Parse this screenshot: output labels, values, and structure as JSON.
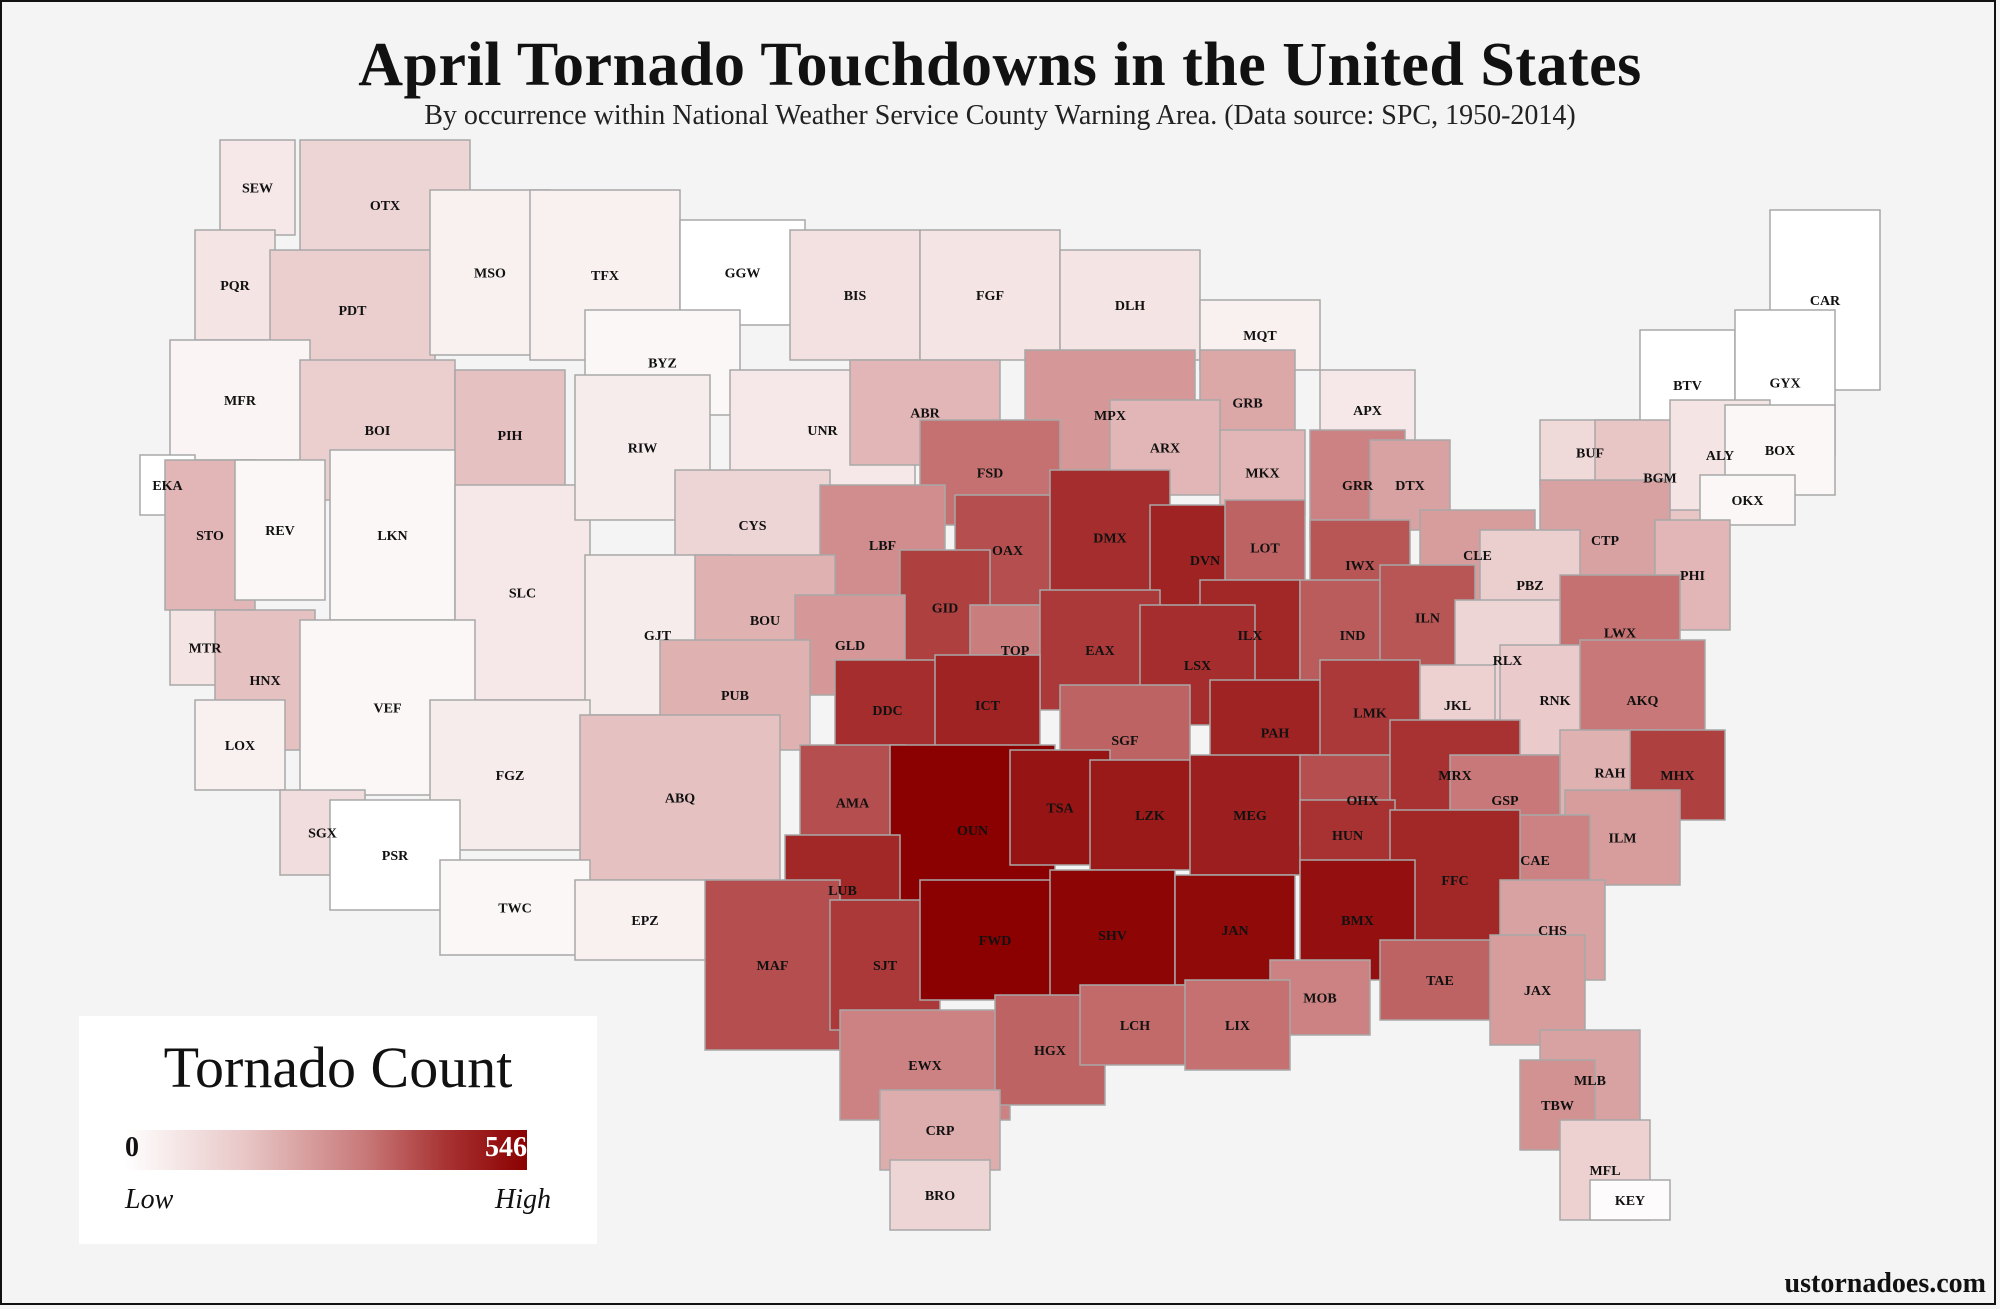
{
  "title": "April Tornado Touchdowns in the United States",
  "subtitle": "By occurrence within National Weather Service County Warning Area. (Data source: SPC, 1950-2014)",
  "legend": {
    "title": "Tornado Count",
    "min": "0",
    "max": "546",
    "low_label": "Low",
    "high_label": "High",
    "color_low": "#ffffff",
    "color_high": "#8b0000"
  },
  "credit": "ustornadoes.com",
  "map_data": {
    "type": "choropleth",
    "shading_scale": "0 (white) to 546 (dark red)",
    "regions": [
      {
        "code": "SEW",
        "level": 0.12
      },
      {
        "code": "OTX",
        "level": 0.22
      },
      {
        "code": "PQR",
        "level": 0.14
      },
      {
        "code": "PDT",
        "level": 0.26
      },
      {
        "code": "MSO",
        "level": 0.08
      },
      {
        "code": "TFX",
        "level": 0.08
      },
      {
        "code": "GGW",
        "level": 0.0
      },
      {
        "code": "BIS",
        "level": 0.16
      },
      {
        "code": "FGF",
        "level": 0.14
      },
      {
        "code": "DLH",
        "level": 0.14
      },
      {
        "code": "MQT",
        "level": 0.08
      },
      {
        "code": "CAR",
        "level": 0.0
      },
      {
        "code": "MFR",
        "level": 0.06
      },
      {
        "code": "BOI",
        "level": 0.26
      },
      {
        "code": "PIH",
        "level": 0.32
      },
      {
        "code": "BYZ",
        "level": 0.04
      },
      {
        "code": "UNR",
        "level": 0.12
      },
      {
        "code": "ABR",
        "level": 0.36
      },
      {
        "code": "MPX",
        "level": 0.48
      },
      {
        "code": "GRB",
        "level": 0.42
      },
      {
        "code": "APX",
        "level": 0.12
      },
      {
        "code": "BTV",
        "level": 0.0
      },
      {
        "code": "GYX",
        "level": 0.0
      },
      {
        "code": "EKA",
        "level": 0.0
      },
      {
        "code": "STO",
        "level": 0.36
      },
      {
        "code": "REV",
        "level": 0.04
      },
      {
        "code": "LKN",
        "level": 0.04
      },
      {
        "code": "SLC",
        "level": 0.12
      },
      {
        "code": "RIW",
        "level": 0.1
      },
      {
        "code": "CYS",
        "level": 0.22
      },
      {
        "code": "FSD",
        "level": 0.62
      },
      {
        "code": "ARX",
        "level": 0.36
      },
      {
        "code": "MKX",
        "level": 0.36
      },
      {
        "code": "GRR",
        "level": 0.56
      },
      {
        "code": "DTX",
        "level": 0.44
      },
      {
        "code": "BUF",
        "level": 0.2
      },
      {
        "code": "BGM",
        "level": 0.3
      },
      {
        "code": "ALY",
        "level": 0.14
      },
      {
        "code": "BOX",
        "level": 0.04
      },
      {
        "code": "OKX",
        "level": 0.04
      },
      {
        "code": "MTR",
        "level": 0.14
      },
      {
        "code": "HNX",
        "level": 0.32
      },
      {
        "code": "GJT",
        "level": 0.1
      },
      {
        "code": "LBF",
        "level": 0.52
      },
      {
        "code": "OAX",
        "level": 0.72
      },
      {
        "code": "DMX",
        "level": 0.82
      },
      {
        "code": "DVN",
        "level": 0.86
      },
      {
        "code": "LOT",
        "level": 0.66
      },
      {
        "code": "IWX",
        "level": 0.7
      },
      {
        "code": "CLE",
        "level": 0.46
      },
      {
        "code": "CTP",
        "level": 0.44
      },
      {
        "code": "PHI",
        "level": 0.36
      },
      {
        "code": "PBZ",
        "level": 0.26
      },
      {
        "code": "BOU",
        "level": 0.38
      },
      {
        "code": "GID",
        "level": 0.76
      },
      {
        "code": "GLD",
        "level": 0.48
      },
      {
        "code": "ILX",
        "level": 0.84
      },
      {
        "code": "IND",
        "level": 0.68
      },
      {
        "code": "ILN",
        "level": 0.7
      },
      {
        "code": "LWX",
        "level": 0.62
      },
      {
        "code": "VEF",
        "level": 0.04
      },
      {
        "code": "LOX",
        "level": 0.08
      },
      {
        "code": "TOP",
        "level": 0.58
      },
      {
        "code": "EAX",
        "level": 0.78
      },
      {
        "code": "LSX",
        "level": 0.82
      },
      {
        "code": "RLX",
        "level": 0.22
      },
      {
        "code": "PUB",
        "level": 0.38
      },
      {
        "code": "DDC",
        "level": 0.82
      },
      {
        "code": "ICT",
        "level": 0.86
      },
      {
        "code": "SGF",
        "level": 0.66
      },
      {
        "code": "PAH",
        "level": 0.86
      },
      {
        "code": "LMK",
        "level": 0.78
      },
      {
        "code": "JKL",
        "level": 0.24
      },
      {
        "code": "RNK",
        "level": 0.28
      },
      {
        "code": "AKQ",
        "level": 0.6
      },
      {
        "code": "SGX",
        "level": 0.18
      },
      {
        "code": "FGZ",
        "level": 0.1
      },
      {
        "code": "AMA",
        "level": 0.72
      },
      {
        "code": "RAH",
        "level": 0.38
      },
      {
        "code": "MHX",
        "level": 0.76
      },
      {
        "code": "PSR",
        "level": 0.0
      },
      {
        "code": "ABQ",
        "level": 0.32
      },
      {
        "code": "OUN",
        "level": 1.0
      },
      {
        "code": "TSA",
        "level": 0.92
      },
      {
        "code": "LZK",
        "level": 0.9
      },
      {
        "code": "MEG",
        "level": 0.88
      },
      {
        "code": "OHX",
        "level": 0.72
      },
      {
        "code": "MRX",
        "level": 0.8
      },
      {
        "code": "GSP",
        "level": 0.6
      },
      {
        "code": "ILM",
        "level": 0.46
      },
      {
        "code": "CAE",
        "level": 0.56
      },
      {
        "code": "HUN",
        "level": 0.8
      },
      {
        "code": "LUB",
        "level": 0.84
      },
      {
        "code": "TWC",
        "level": 0.04
      },
      {
        "code": "EPZ",
        "level": 0.08
      },
      {
        "code": "FFC",
        "level": 0.84
      },
      {
        "code": "BMX",
        "level": 0.94
      },
      {
        "code": "CHS",
        "level": 0.44
      },
      {
        "code": "MAF",
        "level": 0.72
      },
      {
        "code": "SJT",
        "level": 0.78
      },
      {
        "code": "FWD",
        "level": 1.0
      },
      {
        "code": "SHV",
        "level": 0.98
      },
      {
        "code": "JAN",
        "level": 0.96
      },
      {
        "code": "MOB",
        "level": 0.56
      },
      {
        "code": "TAE",
        "level": 0.66
      },
      {
        "code": "JAX",
        "level": 0.46
      },
      {
        "code": "EWX",
        "level": 0.56
      },
      {
        "code": "HGX",
        "level": 0.66
      },
      {
        "code": "LCH",
        "level": 0.64
      },
      {
        "code": "LIX",
        "level": 0.62
      },
      {
        "code": "MLB",
        "level": 0.44
      },
      {
        "code": "TBW",
        "level": 0.5
      },
      {
        "code": "CRP",
        "level": 0.4
      },
      {
        "code": "MFL",
        "level": 0.24
      },
      {
        "code": "BRO",
        "level": 0.22
      },
      {
        "code": "KEY",
        "level": 0.02
      }
    ]
  }
}
